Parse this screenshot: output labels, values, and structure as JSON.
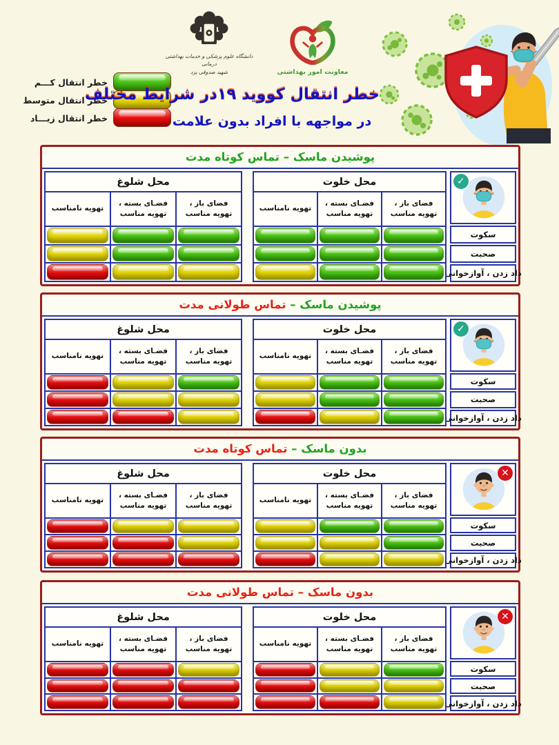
{
  "page": {
    "background": "#F9F7E3"
  },
  "header": {
    "university_logo": {
      "name": "دانشگاه علوم پزشکی و خدمات بهداشتی درمانی",
      "city": "شهید صدوقی یزد"
    },
    "health_dept_logo": {
      "caption": "معاونت امور بهداشتی"
    },
    "title": "خطر انتقال کووید ۱۹در شرایط مختلف",
    "subtitle": "در مواجهه با افراد بدون علامت",
    "legend": {
      "items": [
        {
          "level": "low",
          "label": "خطر انتقال کـــم",
          "color": "#48C213"
        },
        {
          "level": "medium",
          "label": "خطر انتقال متوسط",
          "color": "#E3D503"
        },
        {
          "level": "high",
          "label": "خطر انتقال زیـــاد",
          "color": "#E90C0C"
        }
      ]
    }
  },
  "table_template": {
    "location_groups": [
      {
        "key": "quiet",
        "label": "محل خلوت"
      },
      {
        "key": "crowded",
        "label": "محل شلوغ"
      }
    ],
    "sub_columns": [
      "فضای باز ، تهویه مناسب",
      "فضـای بسته ، تهویه مناسب",
      "تهویه نامناسب"
    ],
    "row_labels": [
      "سکوت",
      "صحبت",
      "داد زدن ، آوازخوانی"
    ]
  },
  "risk_colors": {
    "low": "#48C213",
    "medium": "#E3D503",
    "high": "#E90C0C"
  },
  "border_colors": {
    "outer_red": "#9C1C1C",
    "grid_blue": "#2533A6"
  },
  "tables": [
    {
      "id": "mask-short",
      "mask": true,
      "badge": "check",
      "title_parts": [
        {
          "text": "پوشیدن ماسک – تماس کوتاه مدت",
          "color": "#1FA31F"
        }
      ],
      "rows": [
        {
          "label": "سکوت",
          "quiet": [
            "low",
            "low",
            "low"
          ],
          "crowded": [
            "low",
            "low",
            "medium"
          ]
        },
        {
          "label": "صحبت",
          "quiet": [
            "low",
            "low",
            "low"
          ],
          "crowded": [
            "low",
            "low",
            "medium"
          ]
        },
        {
          "label": "داد زدن ، آوازخوانی",
          "quiet": [
            "low",
            "low",
            "medium"
          ],
          "crowded": [
            "medium",
            "medium",
            "high"
          ]
        }
      ]
    },
    {
      "id": "mask-long",
      "mask": true,
      "badge": "check",
      "title_parts": [
        {
          "text": "پوشیدن ماسک – ",
          "color": "#1FA31F"
        },
        {
          "text": "تماس طولانی مدت",
          "color": "#E62117"
        }
      ],
      "rows": [
        {
          "label": "سکوت",
          "quiet": [
            "low",
            "low",
            "medium"
          ],
          "crowded": [
            "low",
            "medium",
            "high"
          ]
        },
        {
          "label": "صحبت",
          "quiet": [
            "low",
            "low",
            "medium"
          ],
          "crowded": [
            "medium",
            "medium",
            "high"
          ]
        },
        {
          "label": "داد زدن ، آوازخوانی",
          "quiet": [
            "low",
            "medium",
            "high"
          ],
          "crowded": [
            "medium",
            "high",
            "high"
          ]
        }
      ]
    },
    {
      "id": "nomask-short",
      "mask": false,
      "badge": "cross",
      "title_parts": [
        {
          "text": "بدون ماسک – ",
          "color": "#1FA31F"
        },
        {
          "text": "تماس کوتاه مدت",
          "color": "#E62117"
        }
      ],
      "rows": [
        {
          "label": "سکوت",
          "quiet": [
            "low",
            "low",
            "medium"
          ],
          "crowded": [
            "medium",
            "medium",
            "high"
          ]
        },
        {
          "label": "صحبت",
          "quiet": [
            "low",
            "medium",
            "medium"
          ],
          "crowded": [
            "medium",
            "high",
            "high"
          ]
        },
        {
          "label": "داد زدن ، آوازخوانی",
          "quiet": [
            "medium",
            "medium",
            "high"
          ],
          "crowded": [
            "high",
            "high",
            "high"
          ]
        }
      ]
    },
    {
      "id": "nomask-long",
      "mask": false,
      "badge": "cross",
      "title_parts": [
        {
          "text": "بدون ماسک – تماس طولانی مدت",
          "color": "#E62117"
        }
      ],
      "rows": [
        {
          "label": "سکوت",
          "quiet": [
            "low",
            "medium",
            "high"
          ],
          "crowded": [
            "medium",
            "high",
            "high"
          ]
        },
        {
          "label": "صحبت",
          "quiet": [
            "medium",
            "medium",
            "high"
          ],
          "crowded": [
            "high",
            "high",
            "high"
          ]
        },
        {
          "label": "داد زدن ، آوازخوانی",
          "quiet": [
            "medium",
            "high",
            "high"
          ],
          "crowded": [
            "high",
            "high",
            "high"
          ]
        }
      ]
    }
  ]
}
